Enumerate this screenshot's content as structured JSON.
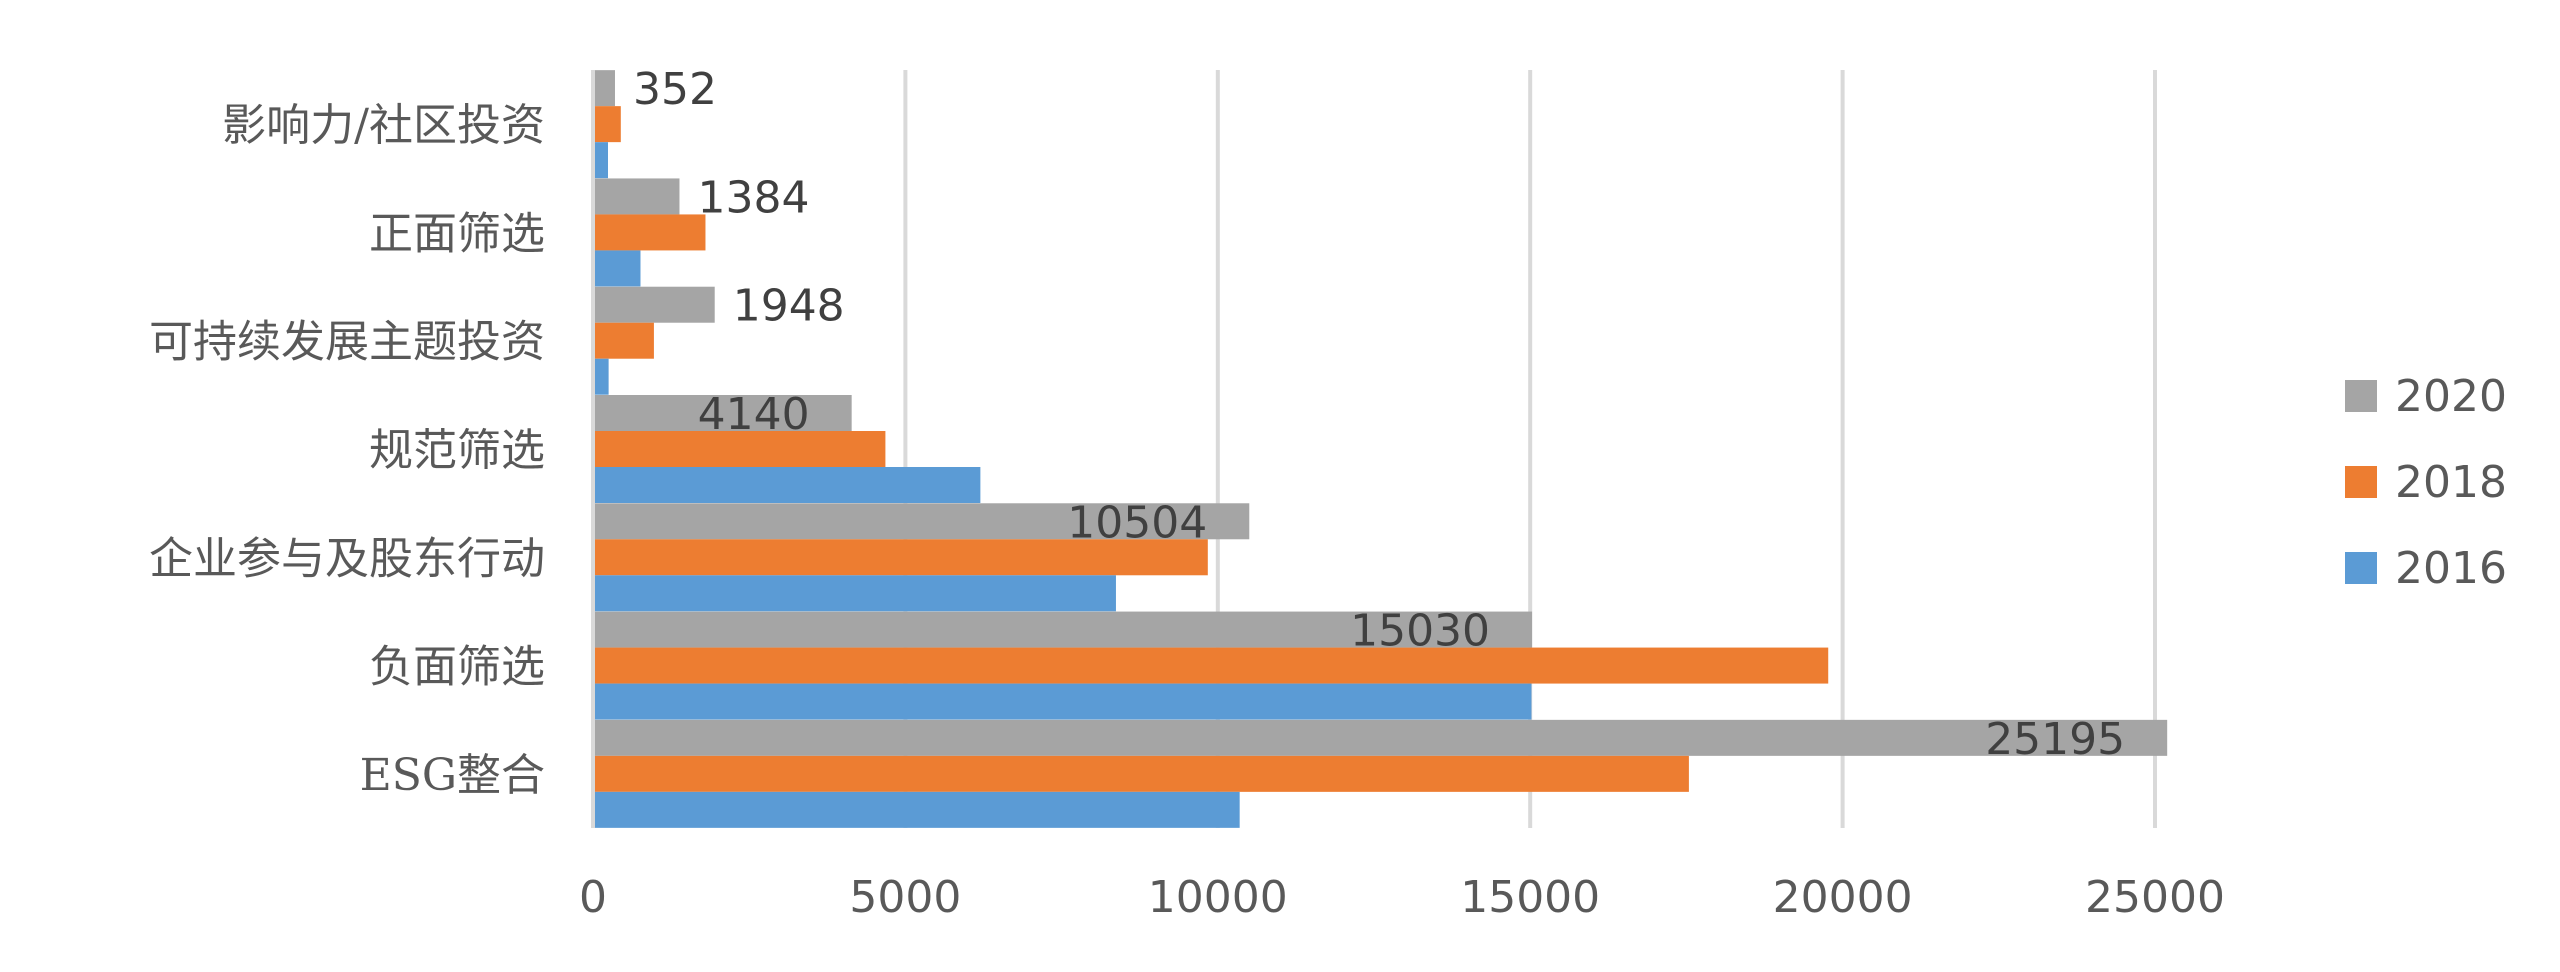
{
  "chart_data": {
    "type": "bar",
    "orientation": "horizontal",
    "categories": [
      "影响力/社区投资",
      "正面筛选",
      "可持续发展主题投资",
      "规范筛选",
      "企业参与及股东行动",
      "负面筛选",
      "ESG整合"
    ],
    "series": [
      {
        "name": "2020",
        "color": "#a5a5a5",
        "values": [
          352,
          1384,
          1948,
          4140,
          10504,
          15030,
          25195
        ],
        "show_data_labels": true
      },
      {
        "name": "2018",
        "color": "#ed7d31",
        "values": [
          445,
          1800,
          975,
          4680,
          9840,
          19770,
          17540
        ],
        "show_data_labels": false
      },
      {
        "name": "2016",
        "color": "#5b9bd5",
        "values": [
          240,
          760,
          250,
          6200,
          8370,
          15020,
          10350
        ],
        "show_data_labels": false
      }
    ],
    "xlim": [
      0,
      25000
    ],
    "x_ticks": [
      "0",
      "5000",
      "10000",
      "15000",
      "20000",
      "25000"
    ],
    "data_labels": [
      "352",
      "1384",
      "1948",
      "4140",
      "10504",
      "15030",
      "25195"
    ],
    "grid": true,
    "legend": {
      "position": "right",
      "order": [
        "2020",
        "2018",
        "2016"
      ]
    },
    "title": "",
    "xlabel": "",
    "ylabel": ""
  }
}
